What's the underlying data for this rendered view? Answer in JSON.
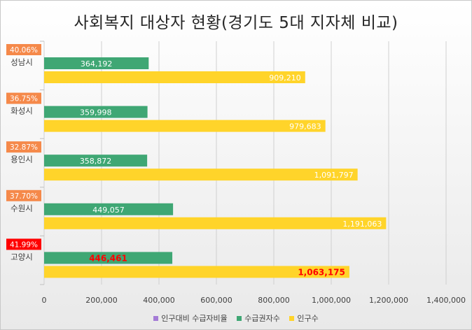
{
  "chart_data": {
    "type": "bar",
    "orientation": "horizontal",
    "title": "사회복지 대상자 현황(경기도 5대 지자체 비교)",
    "categories": [
      "성남시",
      "화성시",
      "용인시",
      "수원시",
      "고양시"
    ],
    "series": [
      {
        "name": "인구대비 수급자비율",
        "values": [
          40.06,
          36.75,
          32.87,
          37.7,
          41.99
        ],
        "labels": [
          "40.06%",
          "36.75%",
          "32.87%",
          "37.70%",
          "41.99%"
        ],
        "color": "#a47bd6"
      },
      {
        "name": "수급권자수",
        "values": [
          364192,
          359998,
          358872,
          449057,
          446461
        ],
        "labels": [
          "364,192",
          "359,998",
          "358,872",
          "449,057",
          "446,461"
        ],
        "color": "#3fa774"
      },
      {
        "name": "인구수",
        "values": [
          909210,
          979683,
          1091797,
          1191063,
          1063175
        ],
        "labels": [
          "909,210",
          "979,683",
          "1,091,797",
          "1,191,063",
          "1,063,175"
        ],
        "color": "#ffd42a"
      }
    ],
    "ratio_badge_colors": [
      "#f5894a",
      "#f5894a",
      "#f5894a",
      "#f5894a",
      "#ff0000"
    ],
    "highlighted_category": "고양시",
    "highlight_color": "#ff0000",
    "xlim": [
      0,
      1400000
    ],
    "xticks": [
      0,
      200000,
      400000,
      600000,
      800000,
      1000000,
      1200000,
      1400000
    ],
    "xtick_labels": [
      "0",
      "200,000",
      "400,000",
      "600,000",
      "800,000",
      "1,000,000",
      "1,200,000",
      "1,400,000"
    ],
    "grid": true,
    "legend": "bottom"
  },
  "colors": {
    "grid": "#d0d0d0",
    "label_light": "#ffffff"
  }
}
